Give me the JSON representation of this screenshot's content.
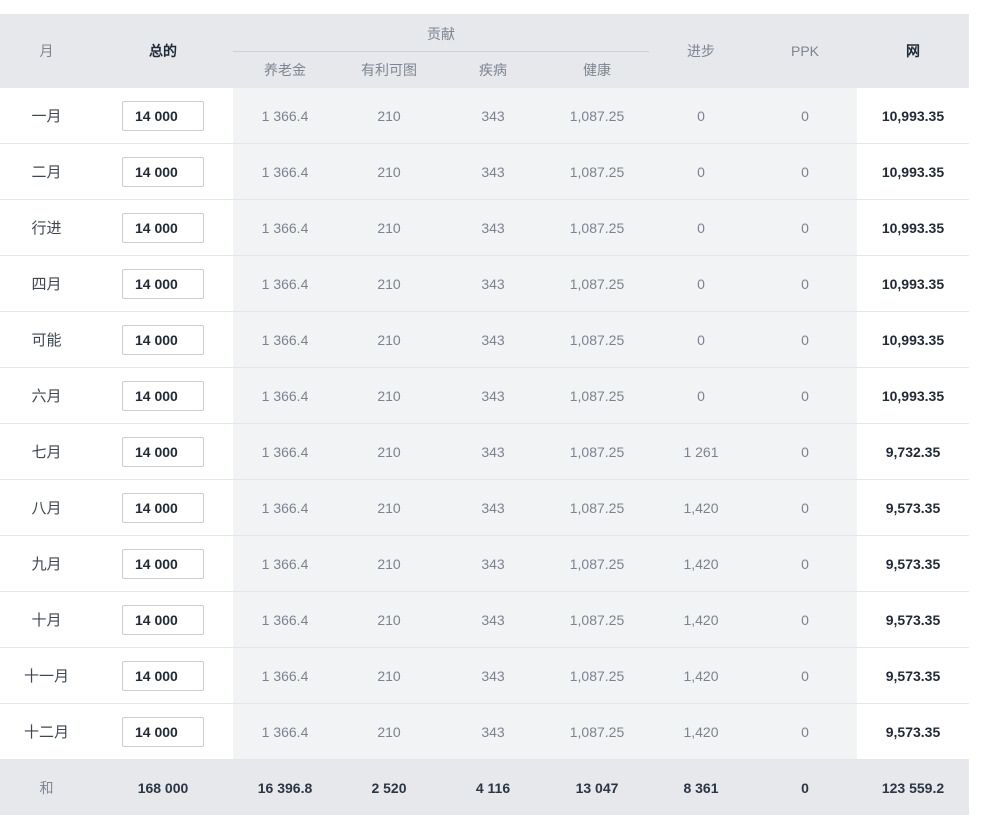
{
  "headers": {
    "month": "月",
    "gross": "总的",
    "contributions": "贡献",
    "pension": "养老金",
    "disability": "有利可图",
    "sickness": "疾病",
    "health": "健康",
    "advance": "进步",
    "ppk": "PPK",
    "net": "网"
  },
  "rows": [
    {
      "month": "一月",
      "gross": "14 000",
      "pension": "1 366.4",
      "disability": "210",
      "sickness": "343",
      "health": "1,087.25",
      "advance": "0",
      "ppk": "0",
      "net": "10,993.35"
    },
    {
      "month": "二月",
      "gross": "14 000",
      "pension": "1 366.4",
      "disability": "210",
      "sickness": "343",
      "health": "1,087.25",
      "advance": "0",
      "ppk": "0",
      "net": "10,993.35"
    },
    {
      "month": "行进",
      "gross": "14 000",
      "pension": "1 366.4",
      "disability": "210",
      "sickness": "343",
      "health": "1,087.25",
      "advance": "0",
      "ppk": "0",
      "net": "10,993.35"
    },
    {
      "month": "四月",
      "gross": "14 000",
      "pension": "1 366.4",
      "disability": "210",
      "sickness": "343",
      "health": "1,087.25",
      "advance": "0",
      "ppk": "0",
      "net": "10,993.35"
    },
    {
      "month": "可能",
      "gross": "14 000",
      "pension": "1 366.4",
      "disability": "210",
      "sickness": "343",
      "health": "1,087.25",
      "advance": "0",
      "ppk": "0",
      "net": "10,993.35"
    },
    {
      "month": "六月",
      "gross": "14 000",
      "pension": "1 366.4",
      "disability": "210",
      "sickness": "343",
      "health": "1,087.25",
      "advance": "0",
      "ppk": "0",
      "net": "10,993.35"
    },
    {
      "month": "七月",
      "gross": "14 000",
      "pension": "1 366.4",
      "disability": "210",
      "sickness": "343",
      "health": "1,087.25",
      "advance": "1 261",
      "ppk": "0",
      "net": "9,732.35"
    },
    {
      "month": "八月",
      "gross": "14 000",
      "pension": "1 366.4",
      "disability": "210",
      "sickness": "343",
      "health": "1,087.25",
      "advance": "1,420",
      "ppk": "0",
      "net": "9,573.35"
    },
    {
      "month": "九月",
      "gross": "14 000",
      "pension": "1 366.4",
      "disability": "210",
      "sickness": "343",
      "health": "1,087.25",
      "advance": "1,420",
      "ppk": "0",
      "net": "9,573.35"
    },
    {
      "month": "十月",
      "gross": "14 000",
      "pension": "1 366.4",
      "disability": "210",
      "sickness": "343",
      "health": "1,087.25",
      "advance": "1,420",
      "ppk": "0",
      "net": "9,573.35"
    },
    {
      "month": "十一月",
      "gross": "14 000",
      "pension": "1 366.4",
      "disability": "210",
      "sickness": "343",
      "health": "1,087.25",
      "advance": "1,420",
      "ppk": "0",
      "net": "9,573.35"
    },
    {
      "month": "十二月",
      "gross": "14 000",
      "pension": "1 366.4",
      "disability": "210",
      "sickness": "343",
      "health": "1,087.25",
      "advance": "1,420",
      "ppk": "0",
      "net": "9,573.35"
    }
  ],
  "totals": {
    "label": "和",
    "gross": "168 000",
    "pension": "16 396.8",
    "disability": "2 520",
    "sickness": "4 116",
    "health": "13 047",
    "advance": "8 361",
    "ppk": "0",
    "net": "123 559.2"
  },
  "colors": {
    "header_bg": "#e6e8ec",
    "gray_column_bg": "#f2f3f5",
    "muted_text": "#7b8390",
    "dark_text": "#1f2a35"
  }
}
